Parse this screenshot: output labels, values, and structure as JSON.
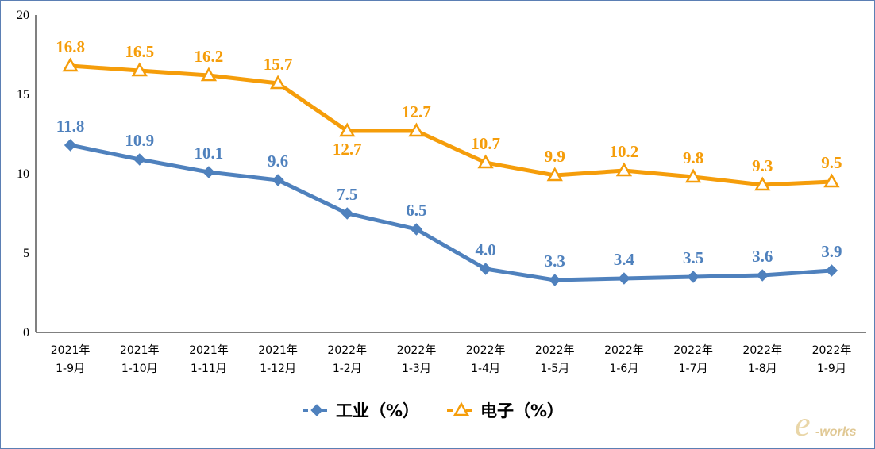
{
  "chart_data": {
    "type": "line",
    "categories": [
      [
        "2021年",
        "1-9月"
      ],
      [
        "2021年",
        "1-10月"
      ],
      [
        "2021年",
        "1-11月"
      ],
      [
        "2021年",
        "1-12月"
      ],
      [
        "2022年",
        "1-2月"
      ],
      [
        "2022年",
        "1-3月"
      ],
      [
        "2022年",
        "1-4月"
      ],
      [
        "2022年",
        "1-5月"
      ],
      [
        "2022年",
        "1-6月"
      ],
      [
        "2022年",
        "1-7月"
      ],
      [
        "2022年",
        "1-8月"
      ],
      [
        "2022年",
        "1-9月"
      ]
    ],
    "series": [
      {
        "name": "工业（%）",
        "color": "#4f81bd",
        "marker": "diamond",
        "values": [
          11.8,
          10.9,
          10.1,
          9.6,
          7.5,
          6.5,
          4.0,
          3.3,
          3.4,
          3.5,
          3.6,
          3.9
        ],
        "labels": [
          "11.8",
          "10.9",
          "10.1",
          "9.6",
          "7.5",
          "6.5",
          "4.0",
          "3.3",
          "3.4",
          "3.5",
          "3.6",
          "3.9"
        ]
      },
      {
        "name": "电子（%）",
        "color": "#f59d0a",
        "marker": "triangle",
        "values": [
          16.8,
          16.5,
          16.2,
          15.7,
          12.7,
          12.7,
          10.7,
          9.9,
          10.2,
          9.8,
          9.3,
          9.5
        ],
        "labels": [
          "16.8",
          "16.5",
          "16.2",
          "15.7",
          "12.7",
          "12.7",
          "10.7",
          "9.9",
          "10.2",
          "9.8",
          "9.3",
          "9.5"
        ]
      }
    ],
    "ylim": [
      0,
      20
    ],
    "yticks": [
      "0",
      "5",
      "10",
      "15",
      "20"
    ],
    "grid": false,
    "legend_position": "bottom",
    "title": "",
    "xlabel": "",
    "ylabel": ""
  },
  "watermark": {
    "glyph": "e",
    "text": "-works"
  }
}
